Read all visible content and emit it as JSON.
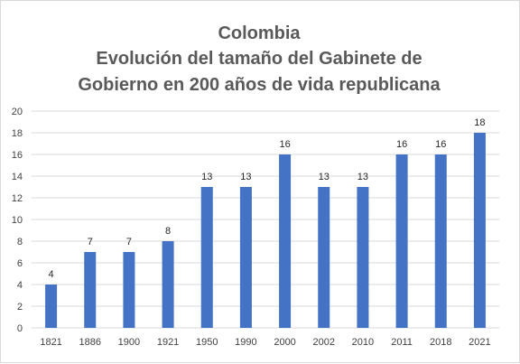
{
  "chart_data": {
    "type": "bar",
    "title_lines": [
      "Colombia",
      "Evolución del tamaño del Gabinete de",
      "Gobierno en 200 años de vida republicana"
    ],
    "categories": [
      "1821",
      "1886",
      "1900",
      "1921",
      "1950",
      "1990",
      "2000",
      "2002",
      "2010",
      "2011",
      "2018",
      "2021"
    ],
    "values": [
      4,
      7,
      7,
      8,
      13,
      13,
      16,
      13,
      13,
      16,
      16,
      18
    ],
    "ylim": [
      0,
      20
    ],
    "yticks": [
      0,
      2,
      4,
      6,
      8,
      10,
      12,
      14,
      16,
      18,
      20
    ],
    "grid": true,
    "data_labels": true,
    "bar_color": "#4472c4",
    "xlabel": "",
    "ylabel": ""
  }
}
